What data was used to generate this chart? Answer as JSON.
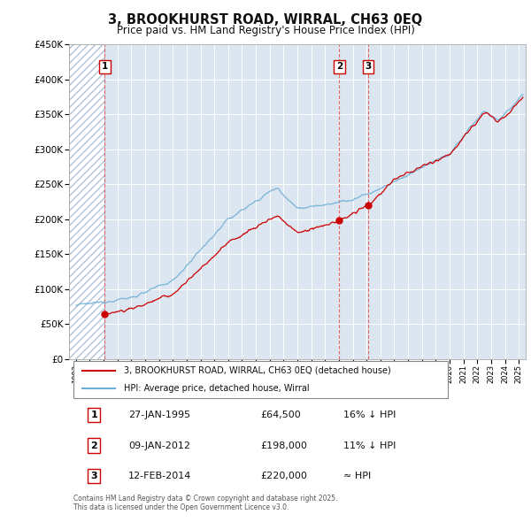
{
  "title": "3, BROOKHURST ROAD, WIRRAL, CH63 0EQ",
  "subtitle": "Price paid vs. HM Land Registry's House Price Index (HPI)",
  "footer": "Contains HM Land Registry data © Crown copyright and database right 2025.\nThis data is licensed under the Open Government Licence v3.0.",
  "legend_label_red": "3, BROOKHURST ROAD, WIRRAL, CH63 0EQ (detached house)",
  "legend_label_blue": "HPI: Average price, detached house, Wirral",
  "ylim": [
    0,
    450000
  ],
  "yticks": [
    0,
    50000,
    100000,
    150000,
    200000,
    250000,
    300000,
    350000,
    400000,
    450000
  ],
  "ytick_labels": [
    "£0",
    "£50K",
    "£100K",
    "£150K",
    "£200K",
    "£250K",
    "£300K",
    "£350K",
    "£400K",
    "£450K"
  ],
  "xlim_start": 1992.5,
  "xlim_end": 2025.5,
  "hatch_end_year": 1995.08,
  "sale_dates": [
    1995.08,
    2012.03,
    2014.12
  ],
  "sale_prices": [
    64500,
    198000,
    220000
  ],
  "sale_labels": [
    "1",
    "2",
    "3"
  ],
  "sale_info": [
    {
      "num": "1",
      "date": "27-JAN-1995",
      "price": "£64,500",
      "hpi": "16% ↓ HPI"
    },
    {
      "num": "2",
      "date": "09-JAN-2012",
      "price": "£198,000",
      "hpi": "11% ↓ HPI"
    },
    {
      "num": "3",
      "date": "12-FEB-2014",
      "price": "£220,000",
      "hpi": "≈ HPI"
    }
  ],
  "background_color": "#ffffff",
  "plot_bg_color": "#dce6f1",
  "grid_color": "#ffffff",
  "hatch_color": "#b0c4d8",
  "red_line_color": "#cc0000",
  "blue_line_color": "#6baed6",
  "dashed_line_color": "#e05050"
}
